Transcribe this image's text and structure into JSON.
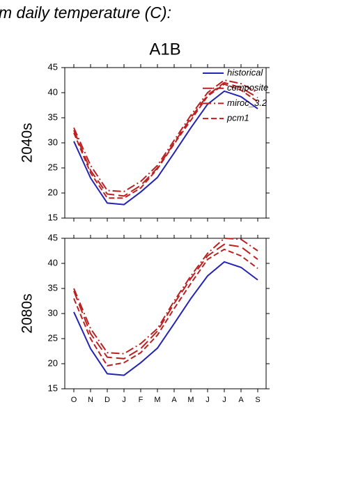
{
  "header": "m daily temperature (C):",
  "chart_data": [
    {
      "type": "line",
      "title": "A1B",
      "ylabel": "2040s",
      "ylim": [
        15,
        45
      ],
      "yticks": [
        15,
        20,
        25,
        30,
        35,
        40,
        45
      ],
      "legend": "upper right",
      "series": [
        {
          "name": "historical",
          "color": "#2323b4",
          "dash": "solid",
          "values": [
            30.3,
            23,
            18,
            17.7,
            20.2,
            23.1,
            28,
            33,
            37.7,
            40.3,
            39.2,
            36.8
          ]
        },
        {
          "name": "composite",
          "color": "#bb2020",
          "dash": "longdash",
          "values": [
            32.5,
            24.5,
            19.8,
            19.4,
            21.5,
            25,
            30,
            35,
            39.5,
            42,
            41,
            39
          ]
        },
        {
          "name": "miroc_3.2",
          "color": "#bb2020",
          "dash": "dashdot",
          "values": [
            33,
            25.5,
            20.5,
            20.3,
            22.3,
            25.5,
            30.5,
            35.5,
            40,
            42.5,
            41.8,
            40
          ]
        },
        {
          "name": "pcm1",
          "color": "#bb2020",
          "dash": "dash",
          "values": [
            32,
            24,
            19,
            19,
            21,
            24.8,
            29.8,
            34.5,
            39.3,
            41.7,
            40.5,
            38.2
          ]
        }
      ]
    },
    {
      "type": "line",
      "ylabel": "2080s",
      "categories": [
        "O",
        "N",
        "D",
        "J",
        "F",
        "M",
        "A",
        "M",
        "J",
        "J",
        "A",
        "S"
      ],
      "ylim": [
        15,
        45
      ],
      "yticks": [
        15,
        20,
        25,
        30,
        35,
        40,
        45
      ],
      "series": [
        {
          "color": "#2323b4",
          "dash": "solid",
          "values": [
            30.3,
            23,
            18,
            17.7,
            20.2,
            23.1,
            28,
            33,
            37.5,
            40.3,
            39.2,
            36.7
          ]
        },
        {
          "color": "#bb2020",
          "dash": "longdash",
          "values": [
            34.5,
            26,
            21.3,
            21,
            23,
            26.5,
            32,
            37,
            41.5,
            43.8,
            43.3,
            40.8
          ]
        },
        {
          "color": "#bb2020",
          "dash": "dashdot",
          "values": [
            35,
            27,
            22.2,
            22,
            24,
            27,
            32.5,
            37.5,
            42,
            45,
            44.8,
            42.5
          ]
        },
        {
          "color": "#bb2020",
          "dash": "dash",
          "values": [
            33,
            25,
            19.6,
            20.2,
            22.2,
            25.7,
            31,
            36,
            40.8,
            42.8,
            41.5,
            39
          ]
        }
      ]
    }
  ]
}
